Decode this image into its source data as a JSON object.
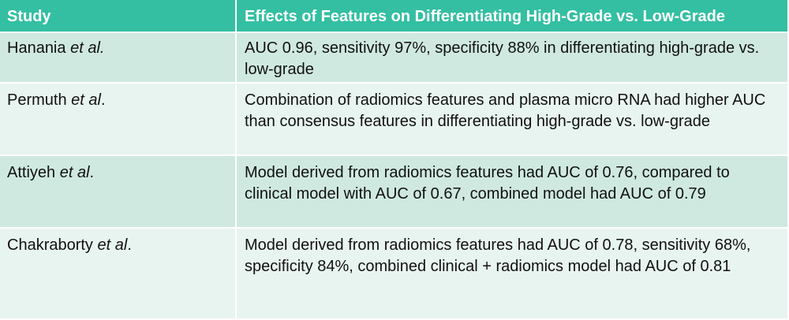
{
  "header": {
    "study": "Study",
    "effects": "Effects of Features on Differentiating High-Grade vs. Low-Grade"
  },
  "rows": [
    {
      "study_name": "Hanania",
      "study_etal": "et al.",
      "study_suffix": "",
      "effect": "AUC 0.96, sensitivity 97%, specificity 88% in differentiating high-grade vs. low-grade"
    },
    {
      "study_name": "Permuth",
      "study_etal": "et al",
      "study_suffix": ".",
      "effect": "Combination of radiomics features and plasma micro RNA had higher AUC than consensus features in differentiating high-grade vs. low-grade"
    },
    {
      "study_name": "Attiyeh",
      "study_etal": "et al",
      "study_suffix": ".",
      "effect": "Model derived from radiomics features had AUC of 0.76, compared to clinical model with AUC of 0.67, combined model had AUC of 0.79"
    },
    {
      "study_name": "Chakraborty",
      "study_etal": "et al",
      "study_suffix": ".",
      "effect": "Model derived from radiomics features had AUC of 0.78, sensitivity 68%, specificity 84%, combined clinical + radiomics model had AUC of 0.81"
    }
  ],
  "colors": {
    "header_bg": "#34bfa2",
    "row_dark_bg": "#cfe9e1",
    "row_light_bg": "#e8f4f0",
    "text": "#111111",
    "header_text": "#ffffff"
  }
}
